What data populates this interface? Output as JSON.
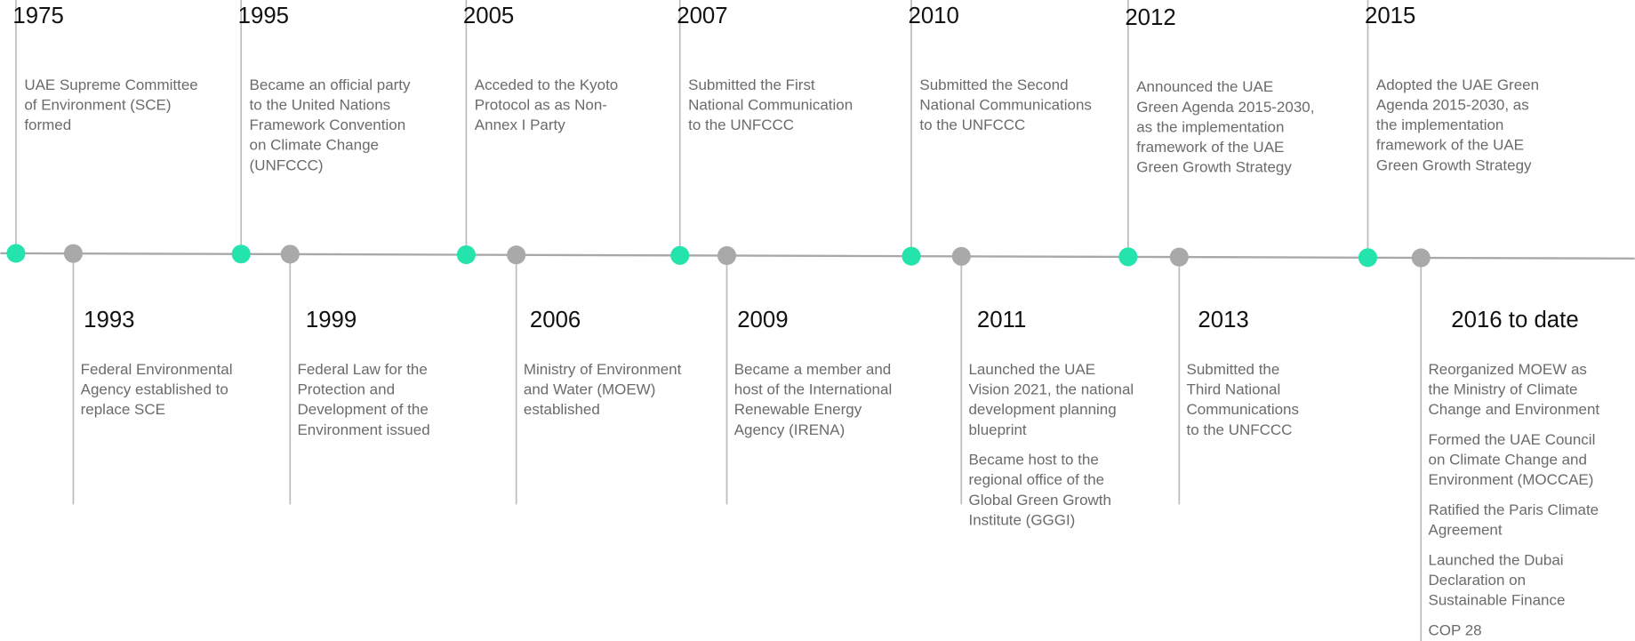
{
  "top": [
    {
      "year": "1975",
      "paragraphs": [
        [
          "UAE Supreme Committee",
          "of Environment (SCE)",
          "formed"
        ]
      ]
    },
    {
      "year": "1995",
      "paragraphs": [
        [
          "Became an official party",
          "to the United Nations",
          "Framework Convention",
          "on Climate Change",
          "(UNFCCC)"
        ]
      ]
    },
    {
      "year": "2005",
      "paragraphs": [
        [
          "Acceded to the Kyoto",
          "Protocol as as Non-",
          "Annex I Party"
        ]
      ]
    },
    {
      "year": "2007",
      "paragraphs": [
        [
          "Submitted the First",
          "National Communication",
          "to the UNFCCC"
        ]
      ]
    },
    {
      "year": "2010",
      "paragraphs": [
        [
          "Submitted the Second",
          "National Communications",
          "to the UNFCCC"
        ]
      ]
    },
    {
      "year": "2012",
      "paragraphs": [
        [
          "Announced the UAE",
          "Green Agenda 2015-2030,",
          "as the implementation",
          "framework of the UAE",
          "Green Growth Strategy"
        ]
      ]
    },
    {
      "year": "2015",
      "paragraphs": [
        [
          "Adopted the UAE Green",
          "Agenda 2015-2030, as",
          "the implementation",
          "framework of the UAE",
          "Green Growth Strategy"
        ]
      ]
    }
  ],
  "bottom": [
    {
      "year": "1993",
      "paragraphs": [
        [
          "Federal Environmental",
          "Agency established to",
          "replace SCE"
        ]
      ]
    },
    {
      "year": "1999",
      "paragraphs": [
        [
          "Federal Law for the",
          "Protection and",
          "Development of the",
          "Environment issued"
        ]
      ]
    },
    {
      "year": "2006",
      "paragraphs": [
        [
          "Ministry of Environment",
          "and Water (MOEW)",
          "established"
        ]
      ]
    },
    {
      "year": "2009",
      "paragraphs": [
        [
          "Became a member and",
          "host of the International",
          "Renewable Energy",
          "Agency (IRENA)"
        ]
      ]
    },
    {
      "year": "2011",
      "paragraphs": [
        [
          "Launched the UAE",
          "Vision 2021, the national",
          "development planning",
          "blueprint"
        ],
        [
          "Became host to the",
          "regional office of the",
          "Global Green Growth",
          "Institute (GGGI)"
        ]
      ]
    },
    {
      "year": "2013",
      "paragraphs": [
        [
          "Submitted the",
          "Third National",
          "Communications",
          "to the UNFCCC"
        ]
      ]
    },
    {
      "year": "2016 to date",
      "paragraphs": [
        [
          "Reorganized MOEW as",
          "the Ministry of Climate",
          "Change and Environment"
        ],
        [
          "Formed the UAE Council",
          "on Climate Change and",
          "Environment (MOCCAE)"
        ],
        [
          "Ratified the Paris Climate",
          "Agreement"
        ],
        [
          "Launched the Dubai",
          "Declaration on",
          "Sustainable Finance"
        ],
        [
          "COP 28"
        ]
      ]
    }
  ]
}
